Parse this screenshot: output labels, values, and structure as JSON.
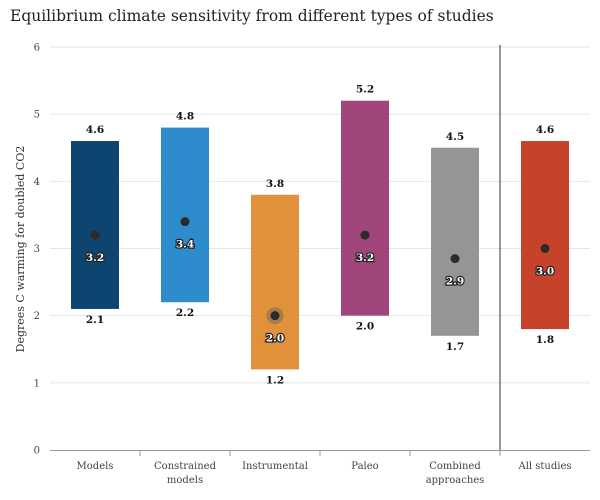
{
  "chart_data": {
    "type": "bar",
    "title": "Equilibrium climate sensitivity from different types of studies",
    "xlabel": "",
    "ylabel": "Degrees C warming for doubled CO2",
    "ylim": [
      0,
      6
    ],
    "yticks": [
      "0",
      "1",
      "2",
      "3",
      "4",
      "5",
      "6"
    ],
    "grid": true,
    "categories": [
      {
        "label": [
          "Models"
        ],
        "low": 2.1,
        "high": 4.6,
        "central": 3.2,
        "color": "#0e4570",
        "low_label": "2.1",
        "high_label": "4.6",
        "central_label": "3.2"
      },
      {
        "label": [
          "Constrained",
          "models"
        ],
        "low": 2.2,
        "high": 4.8,
        "central": 3.4,
        "color": "#2e8bcc",
        "low_label": "2.2",
        "high_label": "4.8",
        "central_label": "3.4"
      },
      {
        "label": [
          "Instrumental"
        ],
        "low": 1.2,
        "high": 3.8,
        "central": 2.0,
        "color": "#e0913a",
        "low_label": "1.2",
        "high_label": "3.8",
        "central_label": "2.0"
      },
      {
        "label": [
          "Paleo"
        ],
        "low": 2.0,
        "high": 5.2,
        "central": 3.2,
        "color": "#a0467a",
        "low_label": "2.0",
        "high_label": "5.2",
        "central_label": "3.2"
      },
      {
        "label": [
          "Combined",
          "approaches"
        ],
        "low": 1.7,
        "high": 4.5,
        "central": 2.85,
        "color": "#959595",
        "low_label": "1.7",
        "high_label": "4.5",
        "central_label": "2.9"
      },
      {
        "label": [
          "All studies"
        ],
        "low": 1.8,
        "high": 4.6,
        "central": 3.0,
        "color": "#c7422a",
        "low_label": "1.8",
        "high_label": "4.6",
        "central_label": "3.0"
      }
    ]
  }
}
